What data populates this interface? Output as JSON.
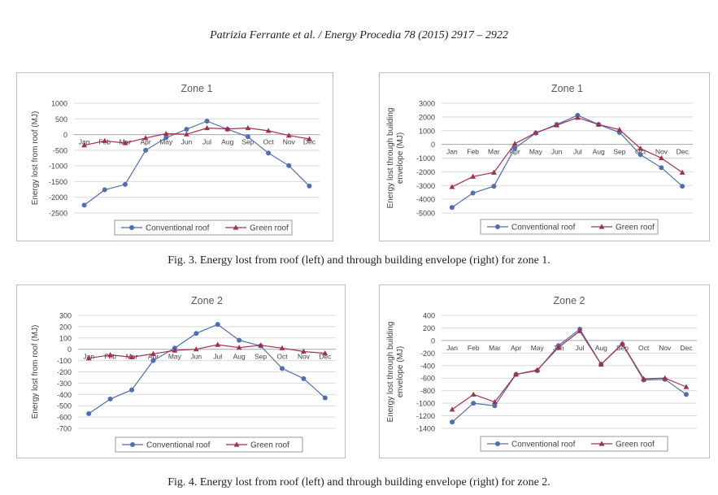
{
  "header": "Patrizia Ferrante et al. / Energy Procedia 78 (2015) 2917 – 2922",
  "captions": {
    "fig3": "Fig. 3. Energy lost from roof (left) and through building envelope (right) for zone 1.",
    "fig4": "Fig. 4. Energy lost from roof (left) and through building envelope (right) for zone 2."
  },
  "colors": {
    "conventional": "#4F6EB0",
    "green": "#A03050",
    "grid": "#d9d9d9",
    "axis": "#a6a6a6"
  },
  "chart_data": [
    {
      "type": "line",
      "title": "Zone 1",
      "ylabel": "Energy lost from roof (MJ)",
      "categories": [
        "Jan",
        "Feb",
        "Mar",
        "Apr",
        "May",
        "Jun",
        "Jul",
        "Aug",
        "Sep",
        "Oct",
        "Nov",
        "Dec"
      ],
      "ylim": [
        -2500,
        1000
      ],
      "yticks": [
        1000,
        500,
        0,
        -500,
        -1000,
        -1500,
        -2000,
        -2500
      ],
      "grid": true,
      "legend": "bottom",
      "series": [
        {
          "name": "Conventional roof",
          "values": [
            -2250,
            -1760,
            -1590,
            -500,
            -100,
            170,
            430,
            170,
            -70,
            -590,
            -990,
            -1640
          ]
        },
        {
          "name": "Green roof",
          "values": [
            -340,
            -200,
            -270,
            -110,
            30,
            10,
            210,
            180,
            210,
            120,
            -30,
            -140
          ]
        }
      ]
    },
    {
      "type": "line",
      "title": "Zone 1",
      "ylabel": "Energy lost through building envelope (MJ)",
      "categories": [
        "Jan",
        "Feb",
        "Mar",
        "Apr",
        "May",
        "Jun",
        "Jul",
        "Aug",
        "Sep",
        "Oct",
        "Nov",
        "Dec"
      ],
      "ylim": [
        -5000,
        3000
      ],
      "yticks": [
        3000,
        2000,
        1000,
        0,
        -1000,
        -2000,
        -3000,
        -4000,
        -5000
      ],
      "grid": true,
      "legend": "bottom",
      "series": [
        {
          "name": "Conventional roof",
          "values": [
            -4600,
            -3550,
            -3050,
            -280,
            820,
            1450,
            2120,
            1450,
            870,
            -750,
            -1700,
            -3050
          ]
        },
        {
          "name": "Green roof",
          "values": [
            -3100,
            -2350,
            -2050,
            50,
            850,
            1400,
            1950,
            1450,
            1070,
            -300,
            -1000,
            -2050
          ]
        }
      ]
    },
    {
      "type": "line",
      "title": "Zone 2",
      "ylabel": "Energy lost from roof (MJ)",
      "categories": [
        "Jan",
        "Feb",
        "Mar",
        "Apr",
        "May",
        "Jun",
        "Jul",
        "Aug",
        "Sep",
        "Oct",
        "Nov",
        "Dec"
      ],
      "ylim": [
        -700,
        300
      ],
      "yticks": [
        300,
        200,
        100,
        0,
        -100,
        -200,
        -300,
        -400,
        -500,
        -600,
        -700
      ],
      "grid": true,
      "legend": "bottom",
      "series": [
        {
          "name": "Conventional roof",
          "values": [
            -570,
            -440,
            -360,
            -100,
            10,
            140,
            220,
            80,
            30,
            -170,
            -260,
            -430
          ]
        },
        {
          "name": "Green roof",
          "values": [
            -80,
            -50,
            -70,
            -40,
            -10,
            0,
            40,
            15,
            35,
            10,
            -20,
            -35
          ]
        }
      ]
    },
    {
      "type": "line",
      "title": "Zone 2",
      "ylabel": "Energy lost through building envelope (MJ)",
      "categories": [
        "Jan",
        "Feb",
        "Mar",
        "Apr",
        "May",
        "Jun",
        "Jul",
        "Aug",
        "Sep",
        "Oct",
        "Nov",
        "Dec"
      ],
      "ylim": [
        -1400,
        400
      ],
      "yticks": [
        400,
        200,
        0,
        -200,
        -400,
        -600,
        -800,
        -1000,
        -1200,
        -1400
      ],
      "grid": true,
      "legend": "bottom",
      "series": [
        {
          "name": "Conventional roof",
          "values": [
            -1300,
            -1000,
            -1040,
            -540,
            -480,
            -80,
            180,
            -380,
            -60,
            -630,
            -620,
            -860
          ]
        },
        {
          "name": "Green roof",
          "values": [
            -1100,
            -860,
            -980,
            -540,
            -470,
            -110,
            150,
            -380,
            -50,
            -610,
            -600,
            -740
          ]
        }
      ]
    }
  ]
}
